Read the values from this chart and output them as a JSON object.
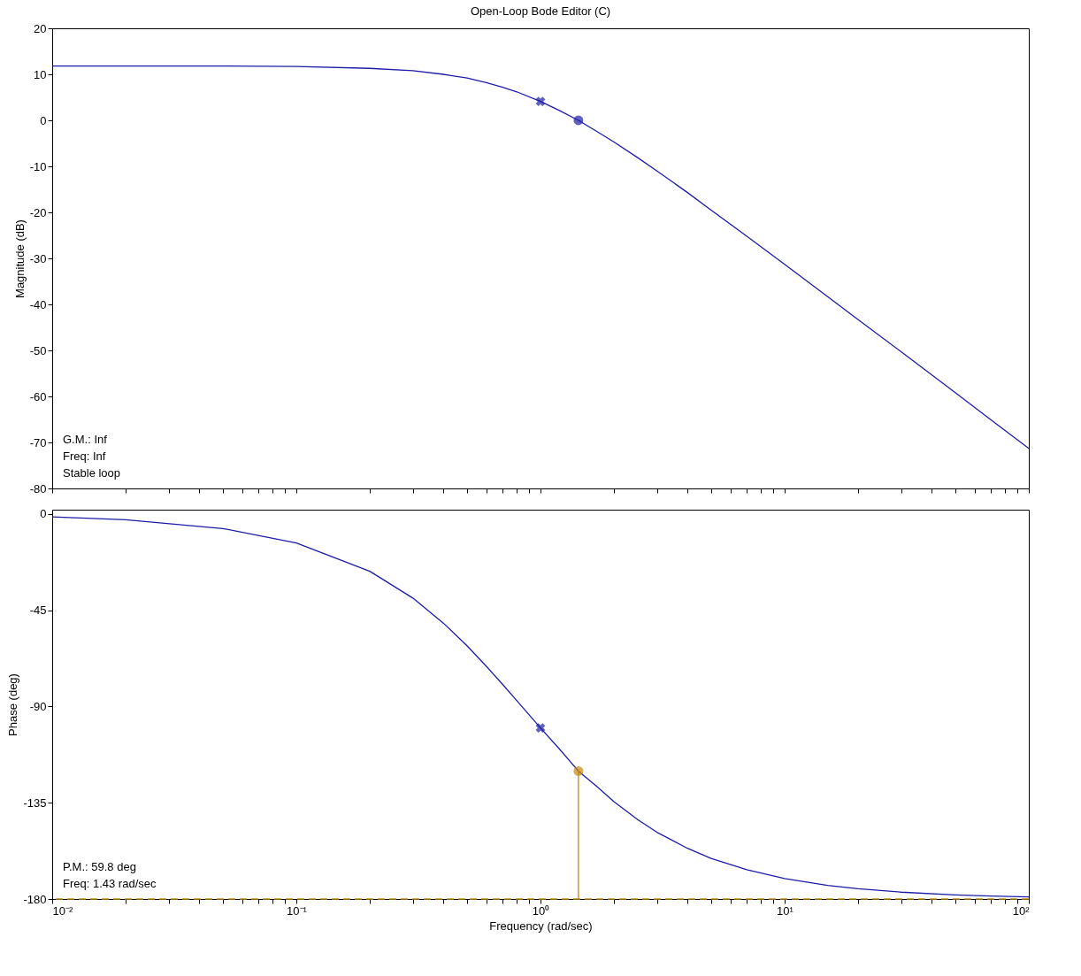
{
  "chart_data": [
    {
      "type": "line",
      "title": "Open-Loop Bode Editor (C)",
      "ylabel": "Magnitude (dB)",
      "log": "x",
      "tick_labels": "y",
      "x": [
        0.01,
        0.02,
        0.05,
        0.1,
        0.2,
        0.3,
        0.4,
        0.5,
        0.6,
        0.7,
        0.8,
        1,
        1.2,
        1.43,
        1.7,
        2,
        2.5,
        3,
        4,
        5,
        7,
        10,
        15,
        20,
        30,
        50,
        70,
        100
      ],
      "series": [
        {
          "color": "#1c1ca8",
          "values": [
            11.8,
            11.8,
            11.8,
            11.7,
            11.3,
            10.8,
            10.0,
            9.2,
            8.2,
            7.2,
            6.2,
            4.1,
            2.1,
            0,
            -2.4,
            -4.7,
            -8.1,
            -11.0,
            -15.7,
            -19.5,
            -25.2,
            -31.3,
            -38.3,
            -43.3,
            -50.3,
            -59.2,
            -65.1,
            -71.3
          ]
        },
        {
          "type": "scatter",
          "marker": "cross",
          "color": "#1c1ca8",
          "values": [
            null,
            null,
            null,
            null,
            null,
            null,
            null,
            null,
            null,
            null,
            null,
            4.1,
            null,
            null,
            null,
            null,
            null,
            null,
            null,
            null,
            null,
            null,
            null,
            null,
            null,
            null,
            null,
            null
          ]
        },
        {
          "type": "scatter",
          "marker": "circle",
          "color": "#1c1ca8",
          "values": [
            null,
            null,
            null,
            null,
            null,
            null,
            null,
            null,
            null,
            null,
            null,
            null,
            null,
            0,
            null,
            null,
            null,
            null,
            null,
            null,
            null,
            null,
            null,
            null,
            null,
            null,
            null,
            null
          ]
        }
      ],
      "xlim": [
        0.01,
        100
      ],
      "ylim": [
        -80,
        20
      ],
      "xticks": [
        {
          "value": 0.01,
          "label": null
        },
        {
          "value": 0.02,
          "label": null
        },
        {
          "value": 0.03,
          "label": null
        },
        {
          "value": 0.04,
          "label": null
        },
        {
          "value": 0.05,
          "label": null
        },
        {
          "value": 0.06,
          "label": null
        },
        {
          "value": 0.07,
          "label": null
        },
        {
          "value": 0.08,
          "label": null
        },
        {
          "value": 0.09,
          "label": null
        },
        {
          "value": 0.1,
          "label": null
        },
        {
          "value": 0.2,
          "label": null
        },
        {
          "value": 0.3,
          "label": null
        },
        {
          "value": 0.4,
          "label": null
        },
        {
          "value": 0.5,
          "label": null
        },
        {
          "value": 0.6,
          "label": null
        },
        {
          "value": 0.7,
          "label": null
        },
        {
          "value": 0.8,
          "label": null
        },
        {
          "value": 0.9,
          "label": null
        },
        {
          "value": 1,
          "label": null
        },
        {
          "value": 2,
          "label": null
        },
        {
          "value": 3,
          "label": null
        },
        {
          "value": 4,
          "label": null
        },
        {
          "value": 5,
          "label": null
        },
        {
          "value": 6,
          "label": null
        },
        {
          "value": 7,
          "label": null
        },
        {
          "value": 8,
          "label": null
        },
        {
          "value": 9,
          "label": null
        },
        {
          "value": 10,
          "label": null
        },
        {
          "value": 20,
          "label": null
        },
        {
          "value": 30,
          "label": null
        },
        {
          "value": 40,
          "label": null
        },
        {
          "value": 50,
          "label": null
        },
        {
          "value": 60,
          "label": null
        },
        {
          "value": 70,
          "label": null
        },
        {
          "value": 80,
          "label": null
        },
        {
          "value": 90,
          "label": null
        },
        {
          "value": 100,
          "label": null
        }
      ],
      "yticks": [
        20,
        10,
        0,
        -10,
        -20,
        -30,
        -40,
        -50,
        -60,
        -70,
        -80
      ],
      "annotations": [
        "G.M.: Inf",
        "Freq: Inf",
        "Stable loop"
      ]
    },
    {
      "type": "line",
      "xlabel": "Frequency (rad/sec)",
      "ylabel": "Phase (deg)",
      "log": "x",
      "x": [
        0.01,
        0.02,
        0.05,
        0.1,
        0.2,
        0.3,
        0.4,
        0.5,
        0.6,
        0.7,
        0.8,
        1,
        1.2,
        1.43,
        1.7,
        2,
        2.5,
        3,
        4,
        5,
        7,
        10,
        15,
        20,
        30,
        50,
        70,
        100
      ],
      "series": [
        {
          "color": "#1c1ca8",
          "values": [
            -1.4,
            -2.7,
            -6.8,
            -13.6,
            -26.8,
            -39.3,
            -51.0,
            -61.6,
            -71.2,
            -79.7,
            -87.3,
            -100.0,
            -110.1,
            -120.2,
            -127.4,
            -134.5,
            -142.9,
            -148.8,
            -156.3,
            -161.0,
            -166.3,
            -170.4,
            -173.6,
            -175.2,
            -176.8,
            -178.1,
            -178.6,
            -179.0
          ]
        },
        {
          "type": "line",
          "color": "#c8860a",
          "x": [
            1.43,
            1.43
          ],
          "values": [
            -180,
            -120.2
          ]
        },
        {
          "type": "scatter",
          "marker": "cross",
          "color": "#1c1ca8",
          "values": [
            null,
            null,
            null,
            null,
            null,
            null,
            null,
            null,
            null,
            null,
            null,
            -100,
            null,
            null,
            null,
            null,
            null,
            null,
            null,
            null,
            null,
            null,
            null,
            null,
            null,
            null,
            null,
            null
          ]
        },
        {
          "type": "scatter",
          "marker": "circle",
          "color": "#c8860a",
          "values": [
            null,
            null,
            null,
            null,
            null,
            null,
            null,
            null,
            null,
            null,
            null,
            null,
            null,
            -120.2,
            null,
            null,
            null,
            null,
            null,
            null,
            null,
            null,
            null,
            null,
            null,
            null,
            null,
            null
          ]
        }
      ],
      "ref_lines": [
        {
          "axis": "y",
          "value": -180,
          "color": "#c8860a",
          "line_style": "dashed"
        }
      ],
      "xlim": [
        0.01,
        100
      ],
      "ylim": [
        -180,
        2
      ],
      "xticks": [
        {
          "value": 0.01,
          "label": "10⁻²"
        },
        {
          "value": 0.02,
          "label": null
        },
        {
          "value": 0.03,
          "label": null
        },
        {
          "value": 0.04,
          "label": null
        },
        {
          "value": 0.05,
          "label": null
        },
        {
          "value": 0.06,
          "label": null
        },
        {
          "value": 0.07,
          "label": null
        },
        {
          "value": 0.08,
          "label": null
        },
        {
          "value": 0.09,
          "label": null
        },
        {
          "value": 0.1,
          "label": "10⁻¹"
        },
        {
          "value": 0.2,
          "label": null
        },
        {
          "value": 0.3,
          "label": null
        },
        {
          "value": 0.4,
          "label": null
        },
        {
          "value": 0.5,
          "label": null
        },
        {
          "value": 0.6,
          "label": null
        },
        {
          "value": 0.7,
          "label": null
        },
        {
          "value": 0.8,
          "label": null
        },
        {
          "value": 0.9,
          "label": null
        },
        {
          "value": 1,
          "label": "10⁰"
        },
        {
          "value": 2,
          "label": null
        },
        {
          "value": 3,
          "label": null
        },
        {
          "value": 4,
          "label": null
        },
        {
          "value": 5,
          "label": null
        },
        {
          "value": 6,
          "label": null
        },
        {
          "value": 7,
          "label": null
        },
        {
          "value": 8,
          "label": null
        },
        {
          "value": 9,
          "label": null
        },
        {
          "value": 10,
          "label": "10¹"
        },
        {
          "value": 20,
          "label": null
        },
        {
          "value": 30,
          "label": null
        },
        {
          "value": 40,
          "label": null
        },
        {
          "value": 50,
          "label": null
        },
        {
          "value": 60,
          "label": null
        },
        {
          "value": 70,
          "label": null
        },
        {
          "value": 80,
          "label": null
        },
        {
          "value": 90,
          "label": null
        },
        {
          "value": 100,
          "label": "10²"
        }
      ],
      "yticks": [
        0,
        -45,
        -90,
        -135,
        -180
      ],
      "annotations": [
        "P.M.: 59.8 deg",
        "Freq: 1.43 rad/sec"
      ]
    }
  ]
}
